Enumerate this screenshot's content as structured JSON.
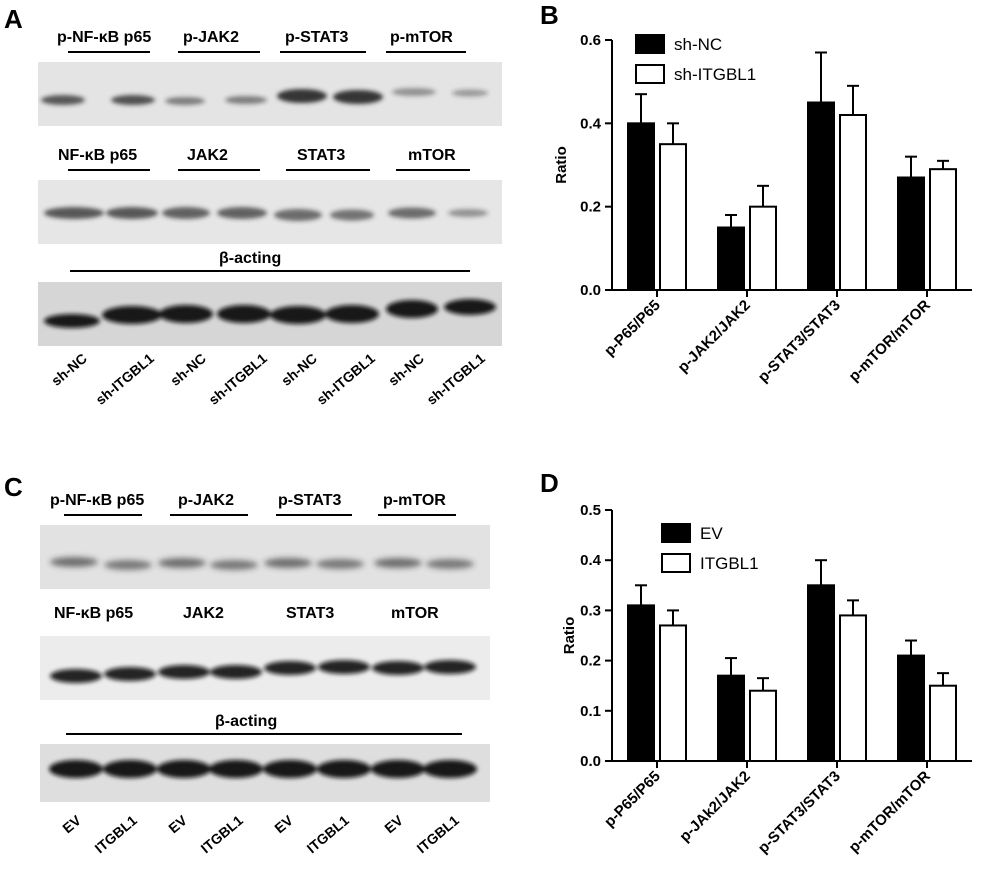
{
  "panels": {
    "A": "A",
    "B": "B",
    "C": "C",
    "D": "D"
  },
  "blot_A": {
    "row1_labels": [
      "p-NF-κB p65",
      "p-JAK2",
      "p-STAT3",
      "p-mTOR"
    ],
    "row2_labels": [
      "NF-κB p65",
      "JAK2",
      "STAT3",
      "mTOR"
    ],
    "loading_label": "β-acting",
    "lanes": [
      "sh-NC",
      "sh-ITGBL1",
      "sh-NC",
      "sh-ITGBL1",
      "sh-NC",
      "sh-ITGBL1",
      "sh-NC",
      "sh-ITGBL1"
    ]
  },
  "blot_C": {
    "row1_labels": [
      "p-NF-κB p65",
      "p-JAK2",
      "p-STAT3",
      "p-mTOR"
    ],
    "row2_labels": [
      "NF-κB p65",
      "JAK2",
      "STAT3",
      "mTOR"
    ],
    "loading_label": "β-acting",
    "lanes": [
      "EV",
      "ITGBL1",
      "EV",
      "ITGBL1",
      "EV",
      "ITGBL1",
      "EV",
      "ITGBL1"
    ]
  },
  "chart_data": [
    {
      "type": "bar",
      "panel": "B",
      "categories": [
        "p-P65/P65",
        "p-JAK2/JAK2",
        "p-STAT3/STAT3",
        "p-mTOR/mTOR"
      ],
      "series": [
        {
          "name": "sh-NC",
          "values": [
            0.4,
            0.15,
            0.45,
            0.27
          ],
          "errors": [
            0.07,
            0.03,
            0.12,
            0.05
          ],
          "fill": "#000000"
        },
        {
          "name": "sh-ITGBL1",
          "values": [
            0.35,
            0.2,
            0.42,
            0.29
          ],
          "errors": [
            0.05,
            0.05,
            0.07,
            0.02
          ],
          "fill": "#ffffff"
        }
      ],
      "ylabel": "Ratio",
      "ylim": [
        0,
        0.6
      ],
      "yticks": [
        "0.0",
        "0.2",
        "0.4",
        "0.6"
      ],
      "legend": "top-left",
      "grid": false
    },
    {
      "type": "bar",
      "panel": "D",
      "categories": [
        "p-P65/P65",
        "p-JAk2/JAK2",
        "p-STAT3/STAT3",
        "p-mTOR/mTOR"
      ],
      "series": [
        {
          "name": "EV",
          "values": [
            0.31,
            0.17,
            0.35,
            0.21
          ],
          "errors": [
            0.04,
            0.035,
            0.05,
            0.03
          ],
          "fill": "#000000"
        },
        {
          "name": "ITGBL1",
          "values": [
            0.27,
            0.14,
            0.29,
            0.15
          ],
          "errors": [
            0.03,
            0.025,
            0.03,
            0.025
          ],
          "fill": "#ffffff"
        }
      ],
      "ylabel": "Ratio",
      "ylim": [
        0,
        0.5
      ],
      "yticks": [
        "0.0",
        "0.1",
        "0.2",
        "0.3",
        "0.4",
        "0.5"
      ],
      "legend": "top-left",
      "grid": false
    }
  ]
}
